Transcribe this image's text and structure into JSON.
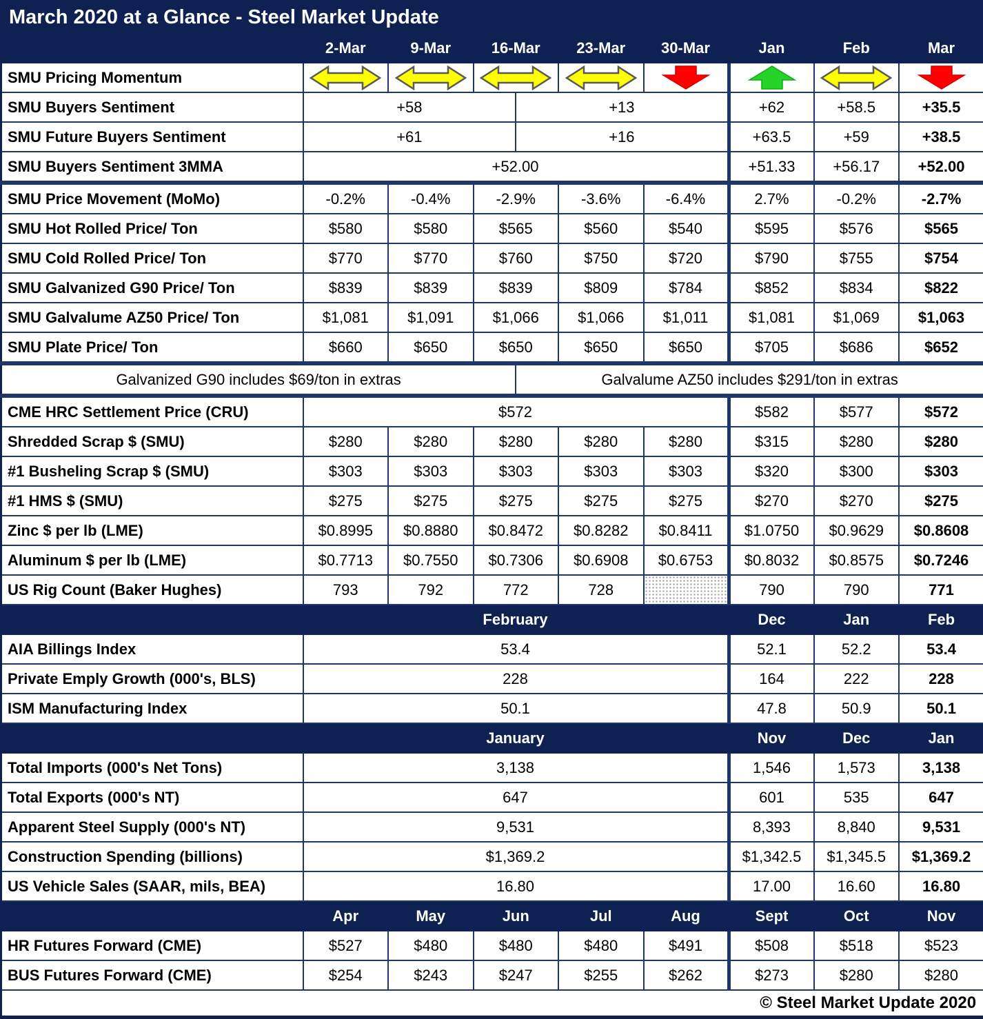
{
  "title": "March 2020 at a Glance - Steel Market Update",
  "footer": {
    "copyright": "© Steel Market Update 2020"
  },
  "colors": {
    "navy": "#0e2152",
    "grid": "#1e3668",
    "arrow_yellow": "#ffff00",
    "arrow_yellow_outline": "#58595b",
    "arrow_red": "#fe0000",
    "arrow_red_outline": "#d40000",
    "arrow_green": "#24d426",
    "arrow_green_outline": "#14ab14"
  },
  "icons": {
    "sideways": "sideways-arrow-icon",
    "down": "down-arrow-icon",
    "up": "up-arrow-icon"
  },
  "chart_data": {
    "type": "table",
    "columns": [
      "2-Mar",
      "9-Mar",
      "16-Mar",
      "23-Mar",
      "30-Mar",
      "Jan",
      "Feb",
      "Mar"
    ],
    "rows": [
      {
        "k": "head",
        "label": "",
        "cells": [
          {
            "t": "2-Mar"
          },
          {
            "t": "9-Mar"
          },
          {
            "t": "16-Mar"
          },
          {
            "t": "23-Mar"
          },
          {
            "t": "30-Mar"
          },
          {
            "t": "Jan"
          },
          {
            "t": "Feb"
          },
          {
            "t": "Mar"
          }
        ]
      },
      {
        "k": "d",
        "label": "SMU Pricing Momentum",
        "cells": [
          {
            "i": "sideways"
          },
          {
            "i": "sideways"
          },
          {
            "i": "sideways"
          },
          {
            "i": "sideways"
          },
          {
            "i": "down"
          },
          {
            "i": "up"
          },
          {
            "i": "sideways"
          },
          {
            "i": "down"
          }
        ]
      },
      {
        "k": "d",
        "label": "SMU Buyers Sentiment",
        "cells": [
          {
            "t": "+58",
            "s": 5
          },
          {
            "t": "+13",
            "s": 5
          },
          {
            "t": "+62"
          },
          {
            "t": "+58.5"
          },
          {
            "t": "+35.5",
            "b": 1
          }
        ]
      },
      {
        "k": "d",
        "label": "SMU Future Buyers Sentiment",
        "cells": [
          {
            "t": "+61",
            "s": 5
          },
          {
            "t": "+16",
            "s": 5
          },
          {
            "t": "+63.5"
          },
          {
            "t": "+59"
          },
          {
            "t": "+38.5",
            "b": 1
          }
        ]
      },
      {
        "k": "d",
        "label": "SMU Buyers Sentiment 3MMA",
        "cells": [
          {
            "t": "+52.00",
            "s": 10
          },
          {
            "t": "+51.33"
          },
          {
            "t": "+56.17"
          },
          {
            "t": "+52.00",
            "b": 1
          }
        ]
      },
      {
        "k": "d",
        "tt": 1,
        "label": "SMU Price Movement (MoMo)",
        "cells": [
          {
            "t": "-0.2%"
          },
          {
            "t": "-0.4%"
          },
          {
            "t": "-2.9%"
          },
          {
            "t": "-3.6%"
          },
          {
            "t": "-6.4%"
          },
          {
            "t": "2.7%"
          },
          {
            "t": "-0.2%"
          },
          {
            "t": "-2.7%",
            "b": 1
          }
        ]
      },
      {
        "k": "d",
        "label": "SMU Hot Rolled Price/ Ton",
        "cells": [
          {
            "t": "$580"
          },
          {
            "t": "$580"
          },
          {
            "t": "$565"
          },
          {
            "t": "$560"
          },
          {
            "t": "$540"
          },
          {
            "t": "$595"
          },
          {
            "t": "$576"
          },
          {
            "t": "$565",
            "b": 1
          }
        ]
      },
      {
        "k": "d",
        "label": "SMU Cold Rolled Price/ Ton",
        "cells": [
          {
            "t": "$770"
          },
          {
            "t": "$770"
          },
          {
            "t": "$760"
          },
          {
            "t": "$750"
          },
          {
            "t": "$720"
          },
          {
            "t": "$790"
          },
          {
            "t": "$755"
          },
          {
            "t": "$754",
            "b": 1
          }
        ]
      },
      {
        "k": "d",
        "label": "SMU Galvanized G90 Price/ Ton",
        "cells": [
          {
            "t": "$839"
          },
          {
            "t": "$839"
          },
          {
            "t": "$839"
          },
          {
            "t": "$809"
          },
          {
            "t": "$784"
          },
          {
            "t": "$852"
          },
          {
            "t": "$834"
          },
          {
            "t": "$822",
            "b": 1
          }
        ]
      },
      {
        "k": "d",
        "label": "SMU Galvalume AZ50 Price/ Ton",
        "cells": [
          {
            "t": "$1,081"
          },
          {
            "t": "$1,091"
          },
          {
            "t": "$1,066"
          },
          {
            "t": "$1,066"
          },
          {
            "t": "$1,011"
          },
          {
            "t": "$1,081"
          },
          {
            "t": "$1,069"
          },
          {
            "t": "$1,063",
            "b": 1
          }
        ]
      },
      {
        "k": "d",
        "label": "SMU Plate Price/ Ton",
        "cells": [
          {
            "t": "$660"
          },
          {
            "t": "$650"
          },
          {
            "t": "$650"
          },
          {
            "t": "$650"
          },
          {
            "t": "$650"
          },
          {
            "t": "$705"
          },
          {
            "t": "$686"
          },
          {
            "t": "$652",
            "b": 1
          }
        ]
      },
      {
        "k": "note",
        "tt": 1,
        "cells": [
          {
            "t": "Galvanized G90 includes $69/ton in extras",
            "s": 5,
            "sL": 1
          },
          {
            "t": "Galvalume AZ50 includes $291/ton in extras",
            "s": 11
          }
        ]
      },
      {
        "k": "d",
        "tt": 1,
        "label": "CME HRC Settlement Price (CRU)",
        "cells": [
          {
            "t": "$572",
            "s": 10
          },
          {
            "t": "$582"
          },
          {
            "t": "$577"
          },
          {
            "t": "$572",
            "b": 1
          }
        ]
      },
      {
        "k": "d",
        "label": "Shredded Scrap $ (SMU)",
        "cells": [
          {
            "t": "$280"
          },
          {
            "t": "$280"
          },
          {
            "t": "$280"
          },
          {
            "t": "$280"
          },
          {
            "t": "$280"
          },
          {
            "t": "$315"
          },
          {
            "t": "$280"
          },
          {
            "t": "$280",
            "b": 1
          }
        ]
      },
      {
        "k": "d",
        "label": "#1 Busheling Scrap $ (SMU)",
        "cells": [
          {
            "t": "$303"
          },
          {
            "t": "$303"
          },
          {
            "t": "$303"
          },
          {
            "t": "$303"
          },
          {
            "t": "$303"
          },
          {
            "t": "$320"
          },
          {
            "t": "$300"
          },
          {
            "t": "$303",
            "b": 1
          }
        ]
      },
      {
        "k": "d",
        "label": "#1 HMS $ (SMU)",
        "cells": [
          {
            "t": "$275"
          },
          {
            "t": "$275"
          },
          {
            "t": "$275"
          },
          {
            "t": "$275"
          },
          {
            "t": "$275"
          },
          {
            "t": "$270"
          },
          {
            "t": "$270"
          },
          {
            "t": "$275",
            "b": 1
          }
        ]
      },
      {
        "k": "d",
        "label": "Zinc $ per lb (LME)",
        "cells": [
          {
            "t": "$0.8995"
          },
          {
            "t": "$0.8880"
          },
          {
            "t": "$0.8472"
          },
          {
            "t": "$0.8282"
          },
          {
            "t": "$0.8411"
          },
          {
            "t": "$1.0750"
          },
          {
            "t": "$0.9629"
          },
          {
            "t": "$0.8608",
            "b": 1
          }
        ]
      },
      {
        "k": "d",
        "label": "Aluminum $ per lb (LME)",
        "cells": [
          {
            "t": "$0.7713"
          },
          {
            "t": "$0.7550"
          },
          {
            "t": "$0.7306"
          },
          {
            "t": "$0.6908"
          },
          {
            "t": "$0.6753"
          },
          {
            "t": "$0.8032"
          },
          {
            "t": "$0.8575"
          },
          {
            "t": "$0.7246",
            "b": 1
          }
        ]
      },
      {
        "k": "d",
        "label": "US Rig Count (Baker Hughes)",
        "cells": [
          {
            "t": "793"
          },
          {
            "t": "792"
          },
          {
            "t": "772"
          },
          {
            "t": "728"
          },
          {
            "p": 1
          },
          {
            "t": "790"
          },
          {
            "t": "790"
          },
          {
            "t": "771",
            "b": 1
          }
        ]
      },
      {
        "k": "band",
        "label": "",
        "cells": [
          {
            "t": "February",
            "s": 10
          },
          {
            "t": "Dec"
          },
          {
            "t": "Jan"
          },
          {
            "t": "Feb"
          }
        ]
      },
      {
        "k": "d",
        "label": "AIA Billings Index",
        "cells": [
          {
            "t": "53.4",
            "s": 10
          },
          {
            "t": "52.1"
          },
          {
            "t": "52.2"
          },
          {
            "t": "53.4",
            "b": 1
          }
        ]
      },
      {
        "k": "d",
        "label": "Private Emply Growth (000's, BLS)",
        "cells": [
          {
            "t": "228",
            "s": 10
          },
          {
            "t": "164"
          },
          {
            "t": "222"
          },
          {
            "t": "228",
            "b": 1
          }
        ]
      },
      {
        "k": "d",
        "label": "ISM Manufacturing Index",
        "cells": [
          {
            "t": "50.1",
            "s": 10
          },
          {
            "t": "47.8"
          },
          {
            "t": "50.9"
          },
          {
            "t": "50.1",
            "b": 1
          }
        ]
      },
      {
        "k": "band",
        "label": "",
        "cells": [
          {
            "t": "January",
            "s": 10
          },
          {
            "t": "Nov"
          },
          {
            "t": "Dec"
          },
          {
            "t": "Jan"
          }
        ]
      },
      {
        "k": "d",
        "label": "Total Imports (000's Net Tons)",
        "cells": [
          {
            "t": "3,138",
            "s": 10
          },
          {
            "t": "1,546"
          },
          {
            "t": "1,573"
          },
          {
            "t": "3,138",
            "b": 1
          }
        ]
      },
      {
        "k": "d",
        "label": "Total Exports (000's NT)",
        "cells": [
          {
            "t": "647",
            "s": 10
          },
          {
            "t": "601"
          },
          {
            "t": "535"
          },
          {
            "t": "647",
            "b": 1
          }
        ]
      },
      {
        "k": "d",
        "label": "Apparent Steel Supply (000's NT)",
        "cells": [
          {
            "t": "9,531",
            "s": 10
          },
          {
            "t": "8,393"
          },
          {
            "t": "8,840"
          },
          {
            "t": "9,531",
            "b": 1
          }
        ]
      },
      {
        "k": "d",
        "label": "Construction Spending (billions)",
        "cells": [
          {
            "t": "$1,369.2",
            "s": 10
          },
          {
            "t": "$1,342.5"
          },
          {
            "t": "$1,345.5"
          },
          {
            "t": "$1,369.2",
            "b": 1
          }
        ]
      },
      {
        "k": "d",
        "label": "US Vehicle Sales (SAAR, mils, BEA)",
        "cells": [
          {
            "t": "16.80",
            "s": 10
          },
          {
            "t": "17.00"
          },
          {
            "t": "16.60"
          },
          {
            "t": "16.80",
            "b": 1
          }
        ]
      },
      {
        "k": "band",
        "label": "",
        "cells": [
          {
            "t": "Apr"
          },
          {
            "t": "May"
          },
          {
            "t": "Jun"
          },
          {
            "t": "Jul"
          },
          {
            "t": "Aug"
          },
          {
            "t": "Sept"
          },
          {
            "t": "Oct"
          },
          {
            "t": "Nov"
          }
        ]
      },
      {
        "k": "d",
        "label": "HR Futures Forward (CME)",
        "cells": [
          {
            "t": "$527"
          },
          {
            "t": "$480"
          },
          {
            "t": "$480"
          },
          {
            "t": "$480"
          },
          {
            "t": "$491"
          },
          {
            "t": "$508"
          },
          {
            "t": "$518"
          },
          {
            "t": "$523"
          }
        ]
      },
      {
        "k": "d",
        "label": "BUS Futures Forward (CME)",
        "cells": [
          {
            "t": "$254"
          },
          {
            "t": "$243"
          },
          {
            "t": "$247"
          },
          {
            "t": "$255"
          },
          {
            "t": "$262"
          },
          {
            "t": "$273"
          },
          {
            "t": "$280"
          },
          {
            "t": "$280"
          }
        ]
      }
    ]
  }
}
